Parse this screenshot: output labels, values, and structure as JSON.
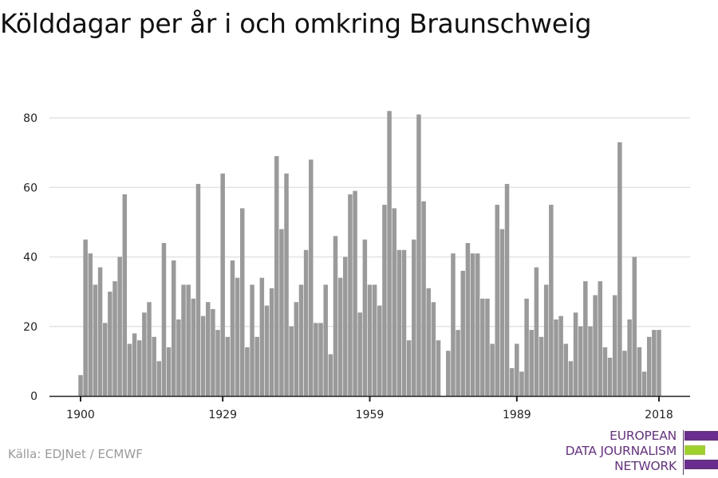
{
  "title": "Kölddagar per år i och omkring Braunschweig",
  "source": "Källa: EDJNet / ECMWF",
  "logo": {
    "lines": [
      "EUROPEAN",
      "DATA JOURNALISM",
      "NETWORK"
    ],
    "colors": {
      "purple": "#6b2c8f",
      "green": "#9ed22a"
    }
  },
  "colors": {
    "bar": "#9a9a9a",
    "grid": "#e3e3e3",
    "axis": "#222222"
  },
  "chart_data": {
    "type": "bar",
    "title": "Kölddagar per år i och omkring Braunschweig",
    "xlabel": "",
    "ylabel": "",
    "ylim": [
      0,
      82
    ],
    "yticks": [
      0,
      20,
      40,
      60,
      80
    ],
    "xticks": [
      1900,
      1929,
      1959,
      1989,
      2018
    ],
    "grid": true,
    "x_start": 1900,
    "values": [
      6,
      45,
      41,
      32,
      37,
      21,
      30,
      33,
      40,
      58,
      15,
      18,
      16,
      24,
      27,
      17,
      10,
      44,
      14,
      39,
      22,
      32,
      32,
      28,
      61,
      23,
      27,
      25,
      19,
      64,
      17,
      39,
      34,
      54,
      14,
      32,
      17,
      34,
      26,
      31,
      69,
      48,
      64,
      20,
      27,
      32,
      42,
      68,
      21,
      21,
      32,
      12,
      46,
      34,
      40,
      58,
      59,
      24,
      45,
      32,
      32,
      26,
      55,
      82,
      54,
      42,
      42,
      16,
      45,
      81,
      56,
      31,
      27,
      16,
      0,
      13,
      41,
      19,
      36,
      44,
      41,
      41,
      28,
      28,
      15,
      55,
      48,
      61,
      8,
      15,
      7,
      28,
      19,
      37,
      17,
      32,
      55,
      22,
      23,
      15,
      10,
      24,
      20,
      33,
      20,
      29,
      33,
      14,
      11,
      29,
      73,
      13,
      22,
      40,
      14,
      7,
      17,
      19,
      19
    ]
  }
}
